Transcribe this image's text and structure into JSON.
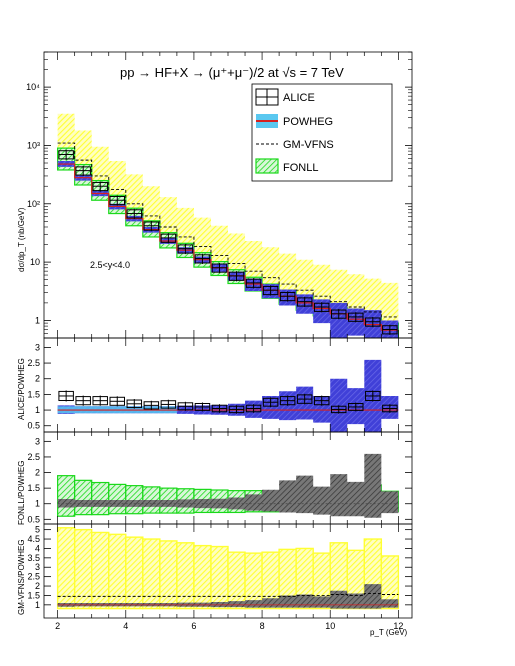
{
  "colors": {
    "alice": "#000000",
    "powheg_band": "#5ac8f0",
    "powheg_line": "#d62020",
    "gmvfns_band": "#ffff33",
    "gmvfns_line": "#000000",
    "fonll": "#19d919",
    "fonll_low_pt_band": "#3030c8",
    "ratio_line": "#d62020"
  },
  "chart_data": [
    {
      "type": "line",
      "panel": "spectrum",
      "title": "pp → HF+X → (μ⁺+μ⁻)/2 at √s = 7 TeV",
      "xlabel": "",
      "ylabel": "dσ/dp_T (nb/GeV)",
      "annotation": "2.5<y<4.0",
      "yscale": "log",
      "xlim": [
        1.6,
        12.4
      ],
      "ylim": [
        0.5,
        40000
      ],
      "yticks": [
        1,
        10,
        100,
        1000,
        10000
      ],
      "yticklabels": [
        "1",
        "10",
        "10²",
        "10³",
        "10⁴"
      ],
      "legend": [
        "ALICE",
        "POWHEG",
        "GM-VFNS",
        "FONLL"
      ],
      "legend_position": "top-right",
      "x": [
        2.25,
        2.75,
        3.25,
        3.75,
        4.25,
        4.75,
        5.25,
        5.75,
        6.25,
        6.75,
        7.25,
        7.75,
        8.25,
        8.75,
        9.25,
        9.75,
        10.25,
        10.75,
        11.25,
        11.75
      ],
      "series": [
        {
          "name": "ALICE",
          "values": [
            700,
            370,
            200,
            115,
            68,
            42,
            26,
            17,
            11.5,
            8.0,
            5.8,
            4.4,
            3.3,
            2.6,
            2.1,
            1.7,
            1.3,
            1.15,
            0.95,
            0.7
          ]
        },
        {
          "name": "POWHEG",
          "values": [
            480,
            280,
            150,
            90,
            56,
            36,
            23,
            16,
            11,
            8.0,
            5.8,
            4.2,
            3.3,
            2.6,
            2.0,
            1.6,
            1.3,
            1.05,
            0.85,
            0.68
          ],
          "band_low": [
            430,
            250,
            135,
            80,
            50,
            32,
            20.5,
            14,
            9.5,
            6.8,
            4.8,
            3.2,
            2.4,
            1.8,
            1.3,
            0.9,
            0.2,
            0.55,
            0.15,
            0.5
          ],
          "band_high": [
            540,
            310,
            170,
            100,
            62,
            40,
            26,
            18,
            12.5,
            9.2,
            6.8,
            5.2,
            4.2,
            3.4,
            2.8,
            2.3,
            2.0,
            1.6,
            1.5,
            1.0
          ]
        },
        {
          "name": "GM-VFNS",
          "values": [
            1100,
            560,
            300,
            175,
            100,
            62,
            40,
            27,
            18.5,
            13,
            9.5,
            7.0,
            5.4,
            4.2,
            3.3,
            2.6,
            2.1,
            1.7,
            1.4,
            1.15
          ],
          "band_low": [
            750,
            390,
            210,
            120,
            72,
            44,
            28,
            19,
            13,
            9.2,
            6.8,
            5.0,
            3.8,
            3.0,
            2.4,
            1.9,
            1.5,
            1.25,
            1.0,
            0.85
          ],
          "band_high": [
            3500,
            1800,
            950,
            540,
            320,
            200,
            130,
            85,
            58,
            42,
            31,
            23,
            18,
            14,
            11,
            9.0,
            7.4,
            6.2,
            5.2,
            4.4
          ]
        },
        {
          "name": "FONLL",
          "values": [
            600,
            320,
            175,
            100,
            60,
            37,
            24,
            16,
            11,
            7.8,
            5.6,
            4.2,
            3.2,
            2.5,
            1.95,
            1.55,
            1.25,
            1.0,
            0.82,
            0.68
          ],
          "band_low": [
            380,
            210,
            115,
            68,
            42,
            27,
            17.5,
            12,
            8.2,
            5.9,
            4.3,
            3.2,
            2.4,
            1.9,
            1.5,
            1.2,
            0.95,
            0.78,
            0.63,
            0.52
          ],
          "band_high": [
            900,
            470,
            250,
            140,
            84,
            51,
            32,
            21,
            14.5,
            10.2,
            7.4,
            5.5,
            4.2,
            3.3,
            2.6,
            2.05,
            1.65,
            1.35,
            1.1,
            0.9
          ]
        }
      ]
    },
    {
      "type": "line",
      "panel": "ratio-alice",
      "ylabel": "ALICE/POWHEG",
      "xlim": [
        1.6,
        12.4
      ],
      "ylim": [
        0.3,
        3.3
      ],
      "yticks": [
        0.5,
        1,
        1.5,
        2,
        2.5,
        3
      ],
      "yticklabels": [
        "0.5",
        "1",
        "1.5",
        "2",
        "2.5",
        "3"
      ],
      "x": [
        2.25,
        2.75,
        3.25,
        3.75,
        4.25,
        4.75,
        5.25,
        5.75,
        6.25,
        6.75,
        7.25,
        7.75,
        8.25,
        8.75,
        9.25,
        9.75,
        10.25,
        10.75,
        11.25,
        11.75
      ],
      "series": [
        {
          "name": "ALICE",
          "values": [
            1.45,
            1.3,
            1.3,
            1.28,
            1.2,
            1.15,
            1.18,
            1.12,
            1.1,
            1.05,
            1.02,
            1.05,
            1.25,
            1.3,
            1.35,
            1.3,
            1.02,
            1.1,
            1.45,
            1.05
          ]
        },
        {
          "name": "POWHEG",
          "values": [
            1,
            1,
            1,
            1,
            1,
            1,
            1,
            1,
            1,
            1,
            1,
            1,
            1,
            1,
            1,
            1,
            1,
            1,
            1,
            1
          ],
          "band_low": [
            0.88,
            0.9,
            0.9,
            0.9,
            0.9,
            0.9,
            0.9,
            0.88,
            0.86,
            0.85,
            0.82,
            0.75,
            0.72,
            0.68,
            0.7,
            0.6,
            0.15,
            0.55,
            0.2,
            0.72
          ],
          "band_high": [
            1.15,
            1.12,
            1.12,
            1.12,
            1.12,
            1.12,
            1.12,
            1.14,
            1.15,
            1.16,
            1.2,
            1.3,
            1.45,
            1.6,
            1.75,
            1.45,
            2.0,
            1.7,
            2.6,
            1.45
          ]
        }
      ]
    },
    {
      "type": "line",
      "panel": "ratio-fonll",
      "ylabel": "FONLL/POWHEG",
      "xlim": [
        1.6,
        12.4
      ],
      "ylim": [
        0.35,
        3.3
      ],
      "yticks": [
        0.5,
        1,
        1.5,
        2,
        2.5,
        3
      ],
      "yticklabels": [
        "0.5",
        "1",
        "1.5",
        "2",
        "2.5",
        "3"
      ],
      "x": [
        2.25,
        2.75,
        3.25,
        3.75,
        4.25,
        4.75,
        5.25,
        5.75,
        6.25,
        6.75,
        7.25,
        7.75,
        8.25,
        8.75,
        9.25,
        9.75,
        10.25,
        10.75,
        11.25,
        11.75
      ],
      "series": [
        {
          "name": "FONLL",
          "values": [
            1.25,
            1.15,
            1.15,
            1.12,
            1.08,
            1.05,
            1.05,
            1.0,
            1.0,
            0.98,
            0.98,
            1.0,
            1.0,
            1.0,
            1.02,
            1.0,
            1.0,
            1.02,
            1.1,
            1.0
          ],
          "band_low": [
            0.6,
            0.65,
            0.65,
            0.68,
            0.68,
            0.7,
            0.7,
            0.7,
            0.72,
            0.72,
            0.72,
            0.74,
            0.74,
            0.75,
            0.75,
            0.75,
            0.75,
            0.75,
            0.74,
            0.75
          ],
          "band_high": [
            1.9,
            1.75,
            1.68,
            1.62,
            1.58,
            1.54,
            1.5,
            1.48,
            1.46,
            1.44,
            1.42,
            1.42,
            1.42,
            1.42,
            1.42,
            1.42,
            1.42,
            1.44,
            1.6,
            1.4
          ]
        },
        {
          "name": "POWHEG",
          "values": [
            1,
            1,
            1,
            1,
            1,
            1,
            1,
            1,
            1,
            1,
            1,
            1,
            1,
            1,
            1,
            1,
            1,
            1,
            1,
            1
          ],
          "band_low": [
            0.88,
            0.9,
            0.9,
            0.9,
            0.9,
            0.9,
            0.9,
            0.88,
            0.86,
            0.85,
            0.82,
            0.78,
            0.75,
            0.72,
            0.7,
            0.65,
            0.6,
            0.6,
            0.55,
            0.7
          ],
          "band_high": [
            1.15,
            1.12,
            1.12,
            1.12,
            1.12,
            1.12,
            1.12,
            1.14,
            1.15,
            1.16,
            1.2,
            1.3,
            1.45,
            1.75,
            1.9,
            1.55,
            1.95,
            1.7,
            2.6,
            1.4
          ]
        }
      ]
    },
    {
      "type": "line",
      "panel": "ratio-gmvfns",
      "ylabel": "GM-VFNS/POWHEG",
      "xlabel": "p_T (GeV)",
      "xlim": [
        1.6,
        12.4
      ],
      "ylim": [
        0.3,
        5.3
      ],
      "yticks": [
        1,
        1.5,
        2,
        2.5,
        3,
        3.5,
        4,
        4.5,
        5
      ],
      "yticklabels": [
        "1",
        "1.5",
        "2",
        "2.5",
        "3",
        "3.5",
        "4",
        "4.5",
        "5"
      ],
      "xticks": [
        2,
        4,
        6,
        8,
        10,
        12
      ],
      "xticklabels": [
        "2",
        "4",
        "6",
        "8",
        "10",
        "12"
      ],
      "x": [
        2.25,
        2.75,
        3.25,
        3.75,
        4.25,
        4.75,
        5.25,
        5.75,
        6.25,
        6.75,
        7.25,
        7.75,
        8.25,
        8.75,
        9.25,
        9.75,
        10.25,
        10.75,
        11.25,
        11.75
      ],
      "series": [
        {
          "name": "GM-VFNS",
          "values": [
            1.45,
            1.45,
            1.45,
            1.45,
            1.45,
            1.45,
            1.45,
            1.45,
            1.45,
            1.45,
            1.45,
            1.45,
            1.45,
            1.45,
            1.5,
            1.5,
            1.55,
            1.5,
            1.6,
            1.55
          ],
          "band_low": [
            0.8,
            0.8,
            0.8,
            0.8,
            0.8,
            0.8,
            0.8,
            0.8,
            0.8,
            0.8,
            0.8,
            0.8,
            0.8,
            0.8,
            0.8,
            0.8,
            0.8,
            0.8,
            0.8,
            0.8
          ],
          "band_high": [
            5.1,
            5.0,
            4.85,
            4.75,
            4.6,
            4.5,
            4.4,
            4.3,
            4.15,
            4.1,
            3.8,
            3.75,
            3.8,
            3.95,
            4.0,
            3.75,
            4.3,
            3.9,
            4.5,
            3.6
          ]
        },
        {
          "name": "POWHEG",
          "values": [
            1,
            1,
            1,
            1,
            1,
            1,
            1,
            1,
            1,
            1,
            1,
            1,
            1,
            1,
            1,
            1,
            1,
            1,
            1,
            1
          ],
          "band_low": [
            0.9,
            0.92,
            0.92,
            0.92,
            0.92,
            0.92,
            0.92,
            0.9,
            0.9,
            0.88,
            0.88,
            0.85,
            0.85,
            0.85,
            0.85,
            0.85,
            0.8,
            0.8,
            0.8,
            0.85
          ],
          "band_high": [
            1.1,
            1.1,
            1.1,
            1.1,
            1.1,
            1.1,
            1.1,
            1.12,
            1.12,
            1.15,
            1.2,
            1.25,
            1.35,
            1.5,
            1.55,
            1.45,
            1.75,
            1.6,
            2.1,
            1.3
          ]
        }
      ]
    }
  ]
}
